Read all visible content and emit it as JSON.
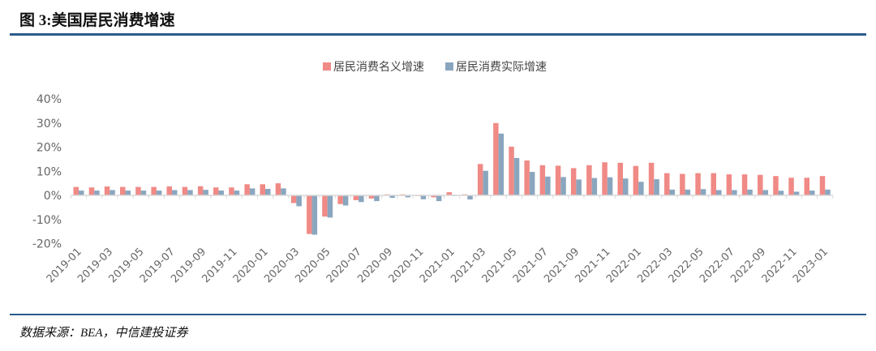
{
  "title": "图 3:美国居民消费增速",
  "source": "数据来源：BEA，中信建投证券",
  "colors": {
    "nominal": "#f08a86",
    "real": "#8aa6bf",
    "rule": "#2b5b8c"
  },
  "chart_data": {
    "type": "bar",
    "title": "",
    "xlabel": "",
    "ylabel": "",
    "ylim": [
      -20,
      40
    ],
    "yticks": [
      "40%",
      "30%",
      "20%",
      "10%",
      "0%",
      "-10%",
      "-20%"
    ],
    "ytick_values": [
      40,
      30,
      20,
      10,
      0,
      -10,
      -20
    ],
    "legend_position": "top-center",
    "categories": [
      "2019-01",
      "2019-02",
      "2019-03",
      "2019-04",
      "2019-05",
      "2019-06",
      "2019-07",
      "2019-08",
      "2019-09",
      "2019-10",
      "2019-11",
      "2019-12",
      "2020-01",
      "2020-02",
      "2020-03",
      "2020-04",
      "2020-05",
      "2020-06",
      "2020-07",
      "2020-08",
      "2020-09",
      "2020-10",
      "2020-11",
      "2020-12",
      "2021-01",
      "2021-02",
      "2021-03",
      "2021-04",
      "2021-05",
      "2021-06",
      "2021-07",
      "2021-08",
      "2021-09",
      "2021-10",
      "2021-11",
      "2021-12",
      "2022-01",
      "2022-02",
      "2022-03",
      "2022-04",
      "2022-05",
      "2022-06",
      "2022-07",
      "2022-08",
      "2022-09",
      "2022-10",
      "2022-11",
      "2022-12",
      "2023-01"
    ],
    "xtick_labels": [
      "2019-01",
      "2019-03",
      "2019-05",
      "2019-07",
      "2019-09",
      "2019-11",
      "2020-01",
      "2020-03",
      "2020-05",
      "2020-07",
      "2020-09",
      "2020-11",
      "2021-01",
      "2021-03",
      "2021-05",
      "2021-07",
      "2021-09",
      "2021-11",
      "2022-01",
      "2022-03",
      "2022-05",
      "2022-07",
      "2022-09",
      "2022-11",
      "2023-01"
    ],
    "series": [
      {
        "name": "居民消费名义增速",
        "values": [
          3.5,
          3.3,
          3.7,
          3.5,
          3.5,
          3.5,
          3.7,
          3.5,
          3.8,
          3.3,
          3.3,
          4.6,
          4.6,
          5.0,
          -3.2,
          -16.0,
          -8.8,
          -3.6,
          -2.0,
          -1.3,
          0.4,
          0.4,
          -0.3,
          -0.8,
          1.3,
          0.4,
          13.0,
          30.0,
          20.2,
          14.5,
          12.5,
          12.3,
          11.3,
          12.5,
          13.7,
          13.5,
          12.2,
          13.5,
          9.2,
          8.9,
          9.2,
          9.2,
          8.7,
          8.7,
          8.5,
          8.0,
          7.3,
          7.3,
          8.0
        ]
      },
      {
        "name": "居民消费实际增速",
        "values": [
          2.0,
          2.0,
          2.2,
          2.0,
          2.0,
          2.0,
          2.2,
          2.2,
          2.3,
          2.0,
          2.0,
          2.9,
          2.7,
          2.9,
          -4.5,
          -16.3,
          -9.2,
          -4.2,
          -2.8,
          -2.4,
          -1.0,
          -0.8,
          -1.6,
          -2.4,
          -0.3,
          -1.7,
          10.2,
          25.6,
          15.5,
          9.7,
          7.8,
          7.6,
          6.6,
          7.2,
          7.5,
          7.0,
          5.6,
          6.7,
          2.4,
          2.4,
          2.6,
          2.2,
          2.2,
          2.4,
          2.2,
          1.9,
          1.5,
          2.0,
          2.4
        ]
      }
    ]
  }
}
